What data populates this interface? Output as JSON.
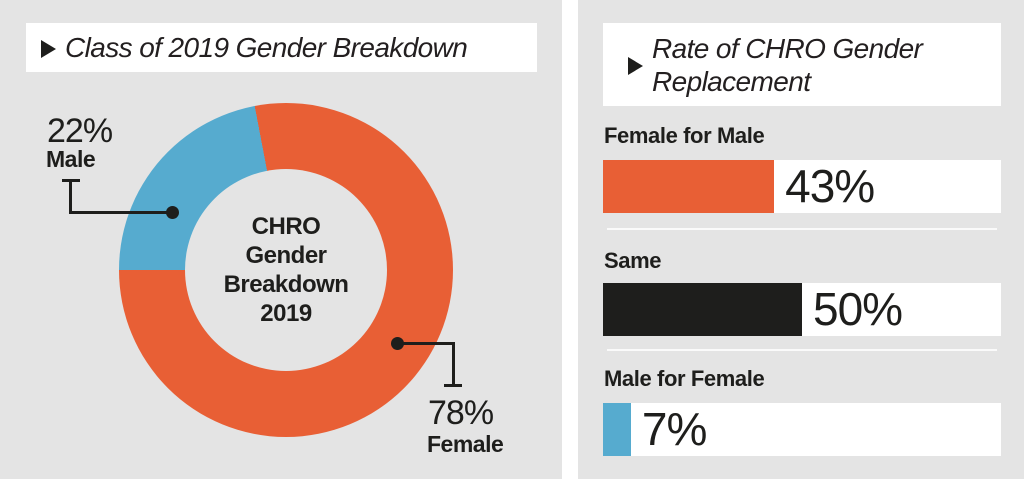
{
  "colors": {
    "orange": "#E85F35",
    "blue": "#56ABCF",
    "dark": "#1E1E1C",
    "panel_bg": "#E4E4E4",
    "box_bg": "#FFFFFF"
  },
  "left_panel": {
    "title": "Class of 2019 Gender Breakdown",
    "donut_center_lines": [
      "CHRO",
      "Gender",
      "Breakdown",
      "2019"
    ],
    "callouts": {
      "male": {
        "pct": "22%",
        "label": "Male"
      },
      "female": {
        "pct": "78%",
        "label": "Female"
      }
    }
  },
  "right_panel": {
    "title_line1": "Rate of CHRO Gender",
    "title_line2": "Replacement",
    "bars": [
      {
        "label": "Female for Male",
        "value_label": "43%"
      },
      {
        "label": "Same",
        "value_label": "50%"
      },
      {
        "label": "Male for Female",
        "value_label": "7%"
      }
    ]
  },
  "chart_data": [
    {
      "type": "pie",
      "donut": true,
      "title": "Class of 2019 Gender Breakdown",
      "center_label": "CHRO Gender Breakdown 2019",
      "categories": [
        "Male",
        "Female"
      ],
      "values": [
        22,
        78
      ],
      "value_labels": [
        "22%",
        "78%"
      ],
      "colors": [
        "#56ABCF",
        "#E85F35"
      ],
      "legend_position": "callouts"
    },
    {
      "type": "bar",
      "orientation": "horizontal",
      "title": "Rate of CHRO Gender Replacement",
      "categories": [
        "Female for Male",
        "Same",
        "Male for Female"
      ],
      "values": [
        43,
        50,
        7
      ],
      "value_labels": [
        "43%",
        "50%",
        "7%"
      ],
      "colors": [
        "#E85F35",
        "#1E1E1C",
        "#56ABCF"
      ],
      "xlim": [
        0,
        100
      ],
      "grid": false,
      "legend": false
    }
  ]
}
